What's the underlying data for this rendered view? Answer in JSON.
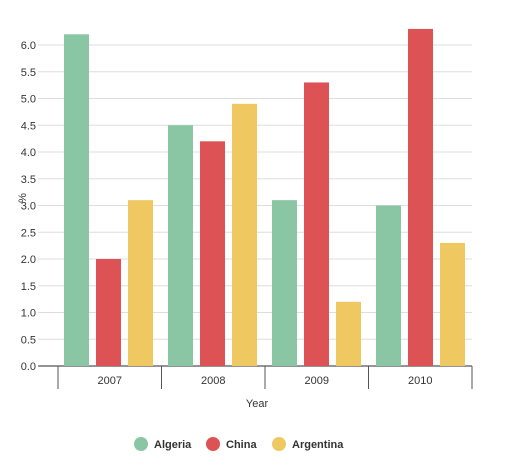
{
  "chart_data": {
    "type": "bar",
    "title": "",
    "xlabel": "Year",
    "ylabel": "%",
    "categories": [
      "2007",
      "2008",
      "2009",
      "2010"
    ],
    "ylim": [
      0,
      6.0
    ],
    "yticks": [
      "0.0",
      "0.5",
      "1.0",
      "1.5",
      "2.0",
      "2.5",
      "3.0",
      "3.5",
      "4.0",
      "4.5",
      "5.0",
      "5.5",
      "6.0"
    ],
    "grid": true,
    "legend_position": "bottom",
    "series": [
      {
        "name": "Algeria",
        "color": "#8ac6a3",
        "values": [
          6.2,
          4.5,
          3.1,
          3.0
        ]
      },
      {
        "name": "China",
        "color": "#dd5255",
        "values": [
          2.0,
          4.2,
          5.3,
          6.3
        ]
      },
      {
        "name": "Argentina",
        "color": "#f0c862",
        "values": [
          3.1,
          4.9,
          1.2,
          2.3
        ]
      }
    ]
  }
}
